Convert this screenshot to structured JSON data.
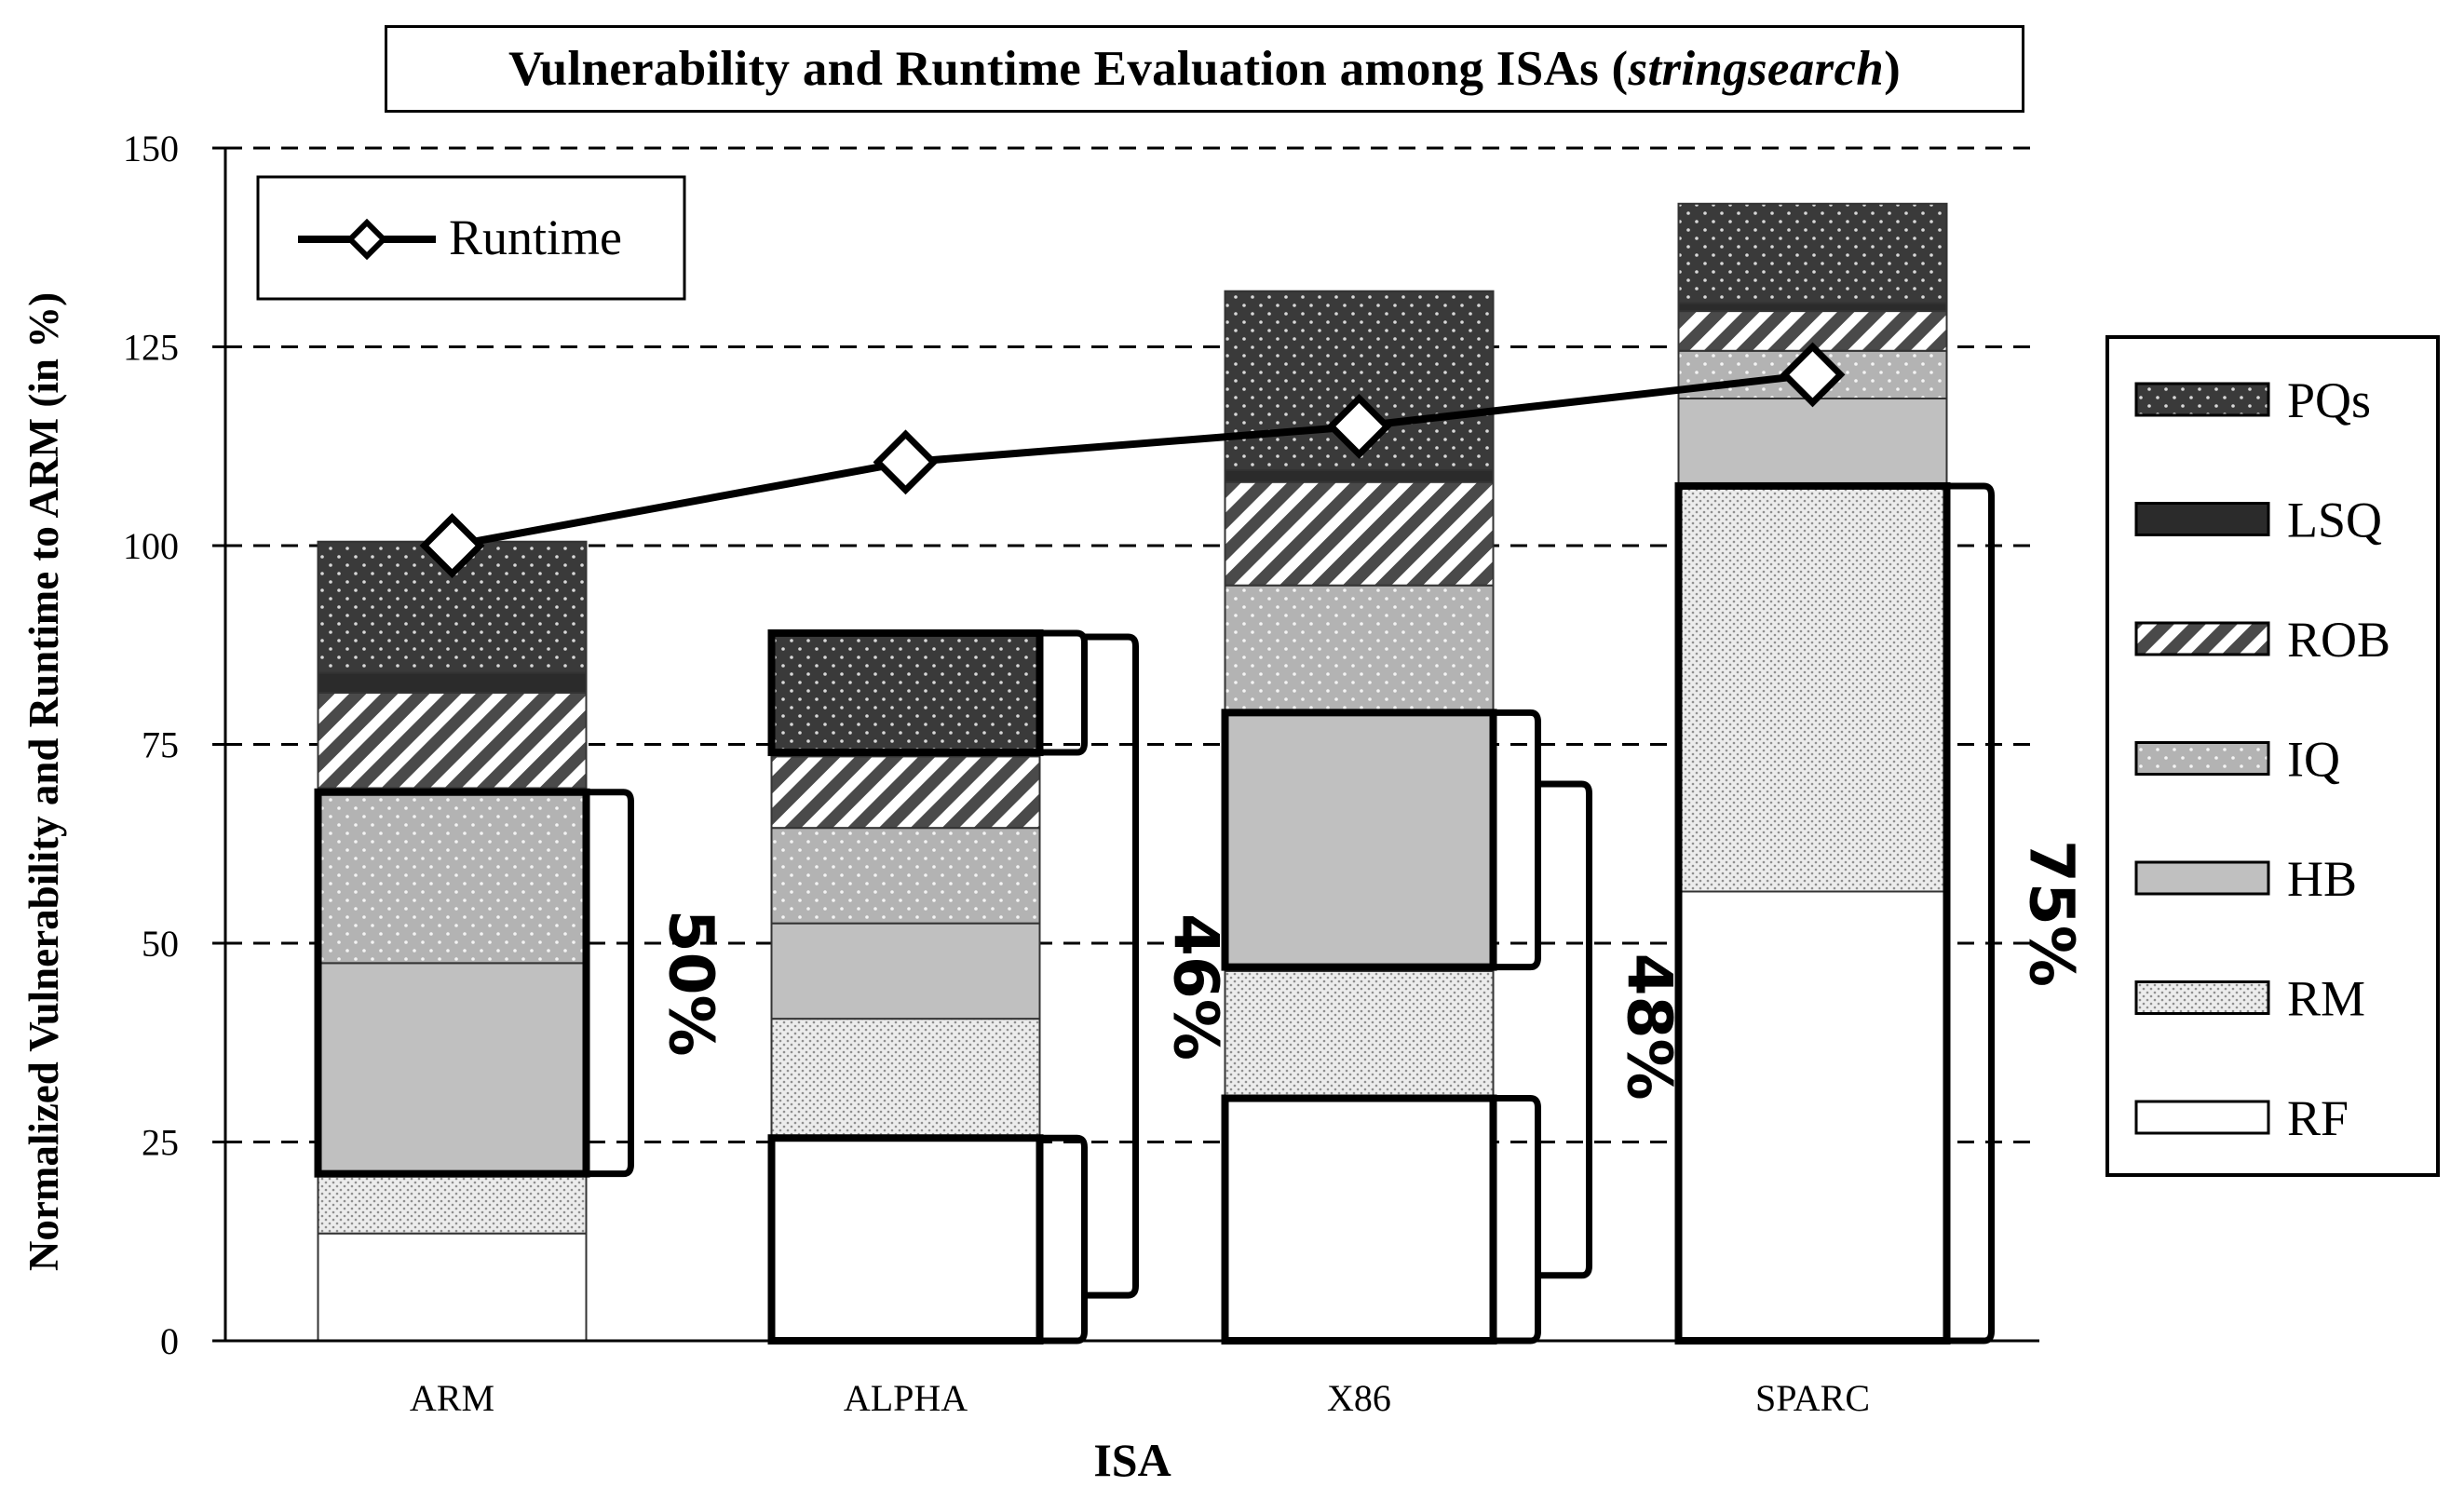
{
  "chart_data": {
    "type": "bar",
    "stacked": true,
    "title": "Vulnerability and Runtime Evaluation among ISAs (",
    "title_italic": "stringsearch",
    "title_suffix": ")",
    "xlabel": "ISA",
    "ylabel": "Normalized Vulnerability and Runtime to ARM (in %)",
    "ylim": [
      0,
      150
    ],
    "yticks": [
      "0",
      "25",
      "50",
      "75",
      "100",
      "125",
      "150"
    ],
    "grid": "horizontal-dashed",
    "categories": [
      "ARM",
      "ALPHA",
      "X86",
      "SPARC"
    ],
    "series": [
      {
        "name": "RF",
        "values": [
          13.5,
          25.5,
          30.5,
          56.5
        ]
      },
      {
        "name": "RM",
        "values": [
          7.5,
          15,
          16,
          51
        ]
      },
      {
        "name": "HB",
        "values": [
          26.5,
          12,
          32.5,
          11
        ]
      },
      {
        "name": "IQ",
        "values": [
          22,
          12,
          16,
          6
        ]
      },
      {
        "name": "ROB",
        "values": [
          12,
          9,
          13,
          5
        ]
      },
      {
        "name": "LSQ",
        "values": [
          2.5,
          0.5,
          1.5,
          1
        ]
      },
      {
        "name": "PQs",
        "values": [
          16.5,
          15,
          22.5,
          12.5
        ]
      }
    ],
    "line_series": {
      "name": "Runtime",
      "values": [
        100,
        110.5,
        115,
        121.5
      ]
    },
    "legend": {
      "position": "right",
      "order": [
        "PQs",
        "LSQ",
        "ROB",
        "IQ",
        "HB",
        "RM",
        "RF"
      ]
    },
    "line_legend": {
      "position": "top-left",
      "label": "Runtime"
    },
    "annotations": [
      {
        "category": "ARM",
        "label": "50%",
        "range": [
          21,
          69
        ]
      },
      {
        "category": "ALPHA",
        "label": "46%",
        "range": [
          0,
          89
        ],
        "groups": [
          [
            0,
            25.5
          ],
          [
            74,
            89
          ]
        ]
      },
      {
        "category": "X86",
        "label": "48%",
        "range": [
          0,
          79
        ],
        "groups": [
          [
            0,
            30.5
          ],
          [
            47,
            79
          ]
        ]
      },
      {
        "category": "SPARC",
        "label": "75%",
        "range": [
          0,
          107.5
        ]
      }
    ]
  },
  "colors": {
    "PQs": "#3c3c3c",
    "LSQ": "#2b2b2b",
    "ROB": "#444444",
    "IQ": "#b2b2b2",
    "HB": "#c0c0c0",
    "RM": "#d9d9d9",
    "RF": "#ffffff"
  }
}
